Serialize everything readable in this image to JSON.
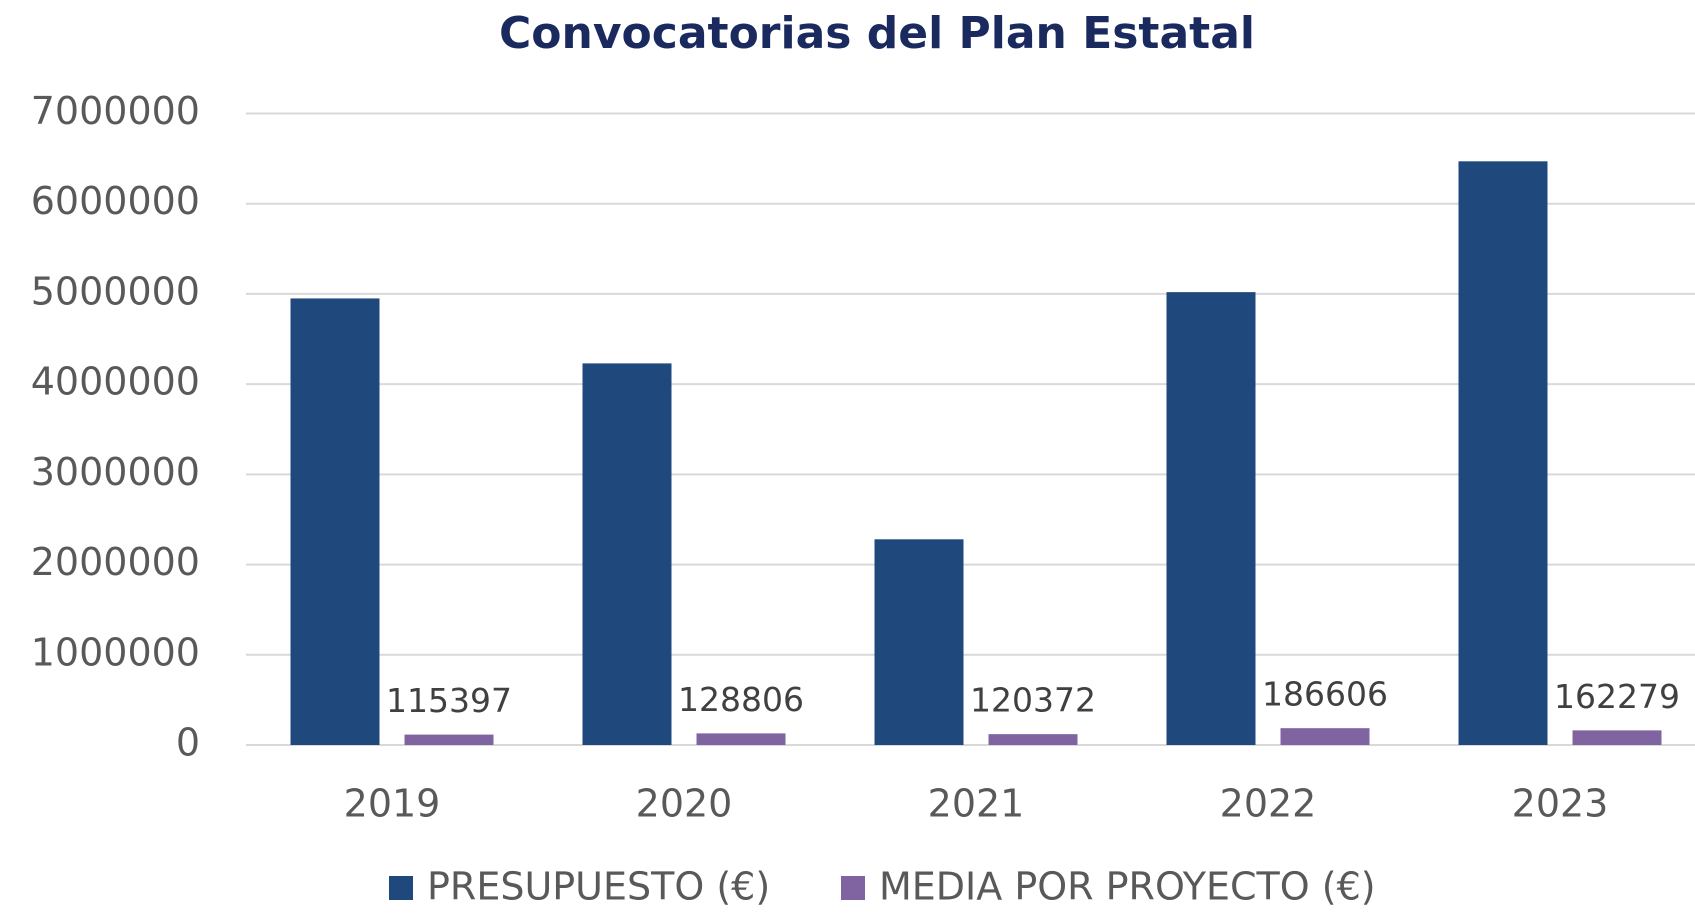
{
  "chart_data": {
    "type": "bar",
    "title": "Convocatorias del Plan Estatal",
    "categories": [
      "2019",
      "2020",
      "2021",
      "2022",
      "2023"
    ],
    "series": [
      {
        "name": "PRESUPUESTO (€)",
        "color": "#1f497d",
        "values": [
          4950000,
          4230000,
          2280000,
          5020000,
          6470000
        ]
      },
      {
        "name": "MEDIA POR PROYECTO (€)",
        "color": "#8064a2",
        "values": [
          115397,
          128806,
          120372,
          186606,
          162279
        ],
        "data_labels": true
      }
    ],
    "ylim": [
      0,
      7000000
    ],
    "yticks": [
      0,
      1000000,
      2000000,
      3000000,
      4000000,
      5000000,
      6000000,
      7000000
    ],
    "grid": true,
    "legend": "bottom"
  }
}
